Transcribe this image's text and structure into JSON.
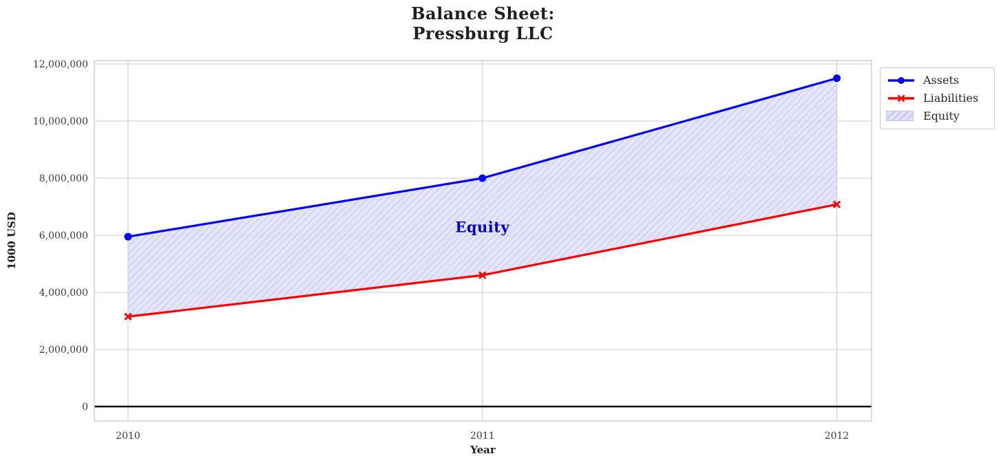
{
  "chart_data": {
    "type": "line-area",
    "title_lines": [
      "Balance Sheet:",
      "Pressburg LLC"
    ],
    "xlabel": "Year",
    "ylabel": "1000 USD",
    "x": [
      2010,
      2011,
      2012
    ],
    "x_labels": [
      "2010",
      "2011",
      "2012"
    ],
    "series": [
      {
        "name": "Assets",
        "color": "#0000ff",
        "marker": "circle",
        "values": [
          5950000,
          8000000,
          11500000
        ]
      },
      {
        "name": "Liabilities",
        "color": "#ff0000",
        "marker": "x",
        "values": [
          3150000,
          4600000,
          7080000
        ]
      }
    ],
    "area": {
      "name": "Equity",
      "between": [
        "Assets",
        "Liabilities"
      ],
      "values": [
        2800000,
        3400000,
        4420000
      ],
      "fill_color": "#e2e2f8",
      "hatch_color": "#c3c3f0",
      "hatch_style": "diagonal-forward"
    },
    "annotation": {
      "text": "Equity",
      "x": 2011,
      "y": 6300000,
      "color": "#0000cd"
    },
    "ylim": [
      0,
      12000000
    ],
    "yticks": [
      {
        "value": 0,
        "label": "0"
      },
      {
        "value": 2000000,
        "label": "2,000,000"
      },
      {
        "value": 4000000,
        "label": "4,000,000"
      },
      {
        "value": 6000000,
        "label": "6,000,000"
      },
      {
        "value": 8000000,
        "label": "8,000,000"
      },
      {
        "value": 10000000,
        "label": "10,000,000"
      },
      {
        "value": 12000000,
        "label": "12,000,000"
      }
    ],
    "grid": true,
    "grid_color": "#cccccc",
    "border_color": "#c8c8c8",
    "zero_line_color": "#000000",
    "text_color": "#3a3a3a",
    "title_color": "#1f1f1f",
    "legend_position": "outside-top-right"
  }
}
